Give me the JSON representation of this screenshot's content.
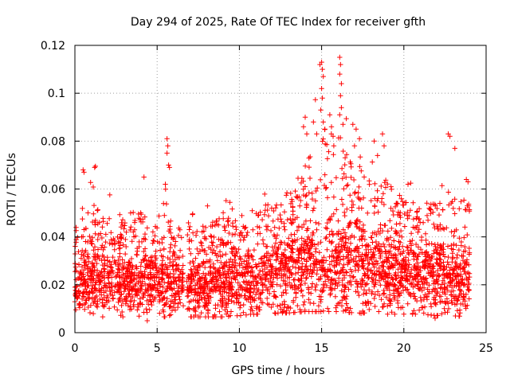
{
  "chart_data": {
    "type": "scatter",
    "title": "Day 294 of 2025, Rate Of TEC Index for receiver gfth",
    "xlabel": "GPS time / hours",
    "ylabel": "ROTI / TECUs",
    "xlim": [
      0,
      25
    ],
    "ylim": [
      0,
      0.12
    ],
    "x_ticks": [
      0,
      5,
      10,
      15,
      20,
      25
    ],
    "x_tick_labels": [
      "0",
      "5",
      "10",
      "15",
      "20",
      "25"
    ],
    "y_ticks": [
      0,
      0.02,
      0.04,
      0.06,
      0.08,
      0.1,
      0.12
    ],
    "y_tick_labels": [
      "0",
      "0.02",
      "0.04",
      "0.06",
      "0.08",
      "0.1",
      "0.12"
    ],
    "grid": true,
    "marker": "+",
    "color": "#ff0000",
    "data_gap_hours": [
      6.6,
      6.8
    ],
    "envelope": [
      {
        "x": 0.0,
        "p10": 0.012,
        "median": 0.022,
        "p90": 0.036,
        "max": 0.047
      },
      {
        "x": 1.0,
        "p10": 0.012,
        "median": 0.022,
        "p90": 0.036,
        "max": 0.069
      },
      {
        "x": 2.0,
        "p10": 0.012,
        "median": 0.022,
        "p90": 0.035,
        "max": 0.06
      },
      {
        "x": 3.0,
        "p10": 0.012,
        "median": 0.022,
        "p90": 0.036,
        "max": 0.062
      },
      {
        "x": 4.0,
        "p10": 0.012,
        "median": 0.022,
        "p90": 0.035,
        "max": 0.064
      },
      {
        "x": 5.0,
        "p10": 0.012,
        "median": 0.022,
        "p90": 0.035,
        "max": 0.055
      },
      {
        "x": 5.5,
        "p10": 0.012,
        "median": 0.022,
        "p90": 0.037,
        "max": 0.081
      },
      {
        "x": 6.5,
        "p10": 0.013,
        "median": 0.021,
        "p90": 0.034,
        "max": 0.046
      },
      {
        "x": 7.0,
        "p10": 0.012,
        "median": 0.02,
        "p90": 0.033,
        "max": 0.052
      },
      {
        "x": 8.0,
        "p10": 0.012,
        "median": 0.02,
        "p90": 0.034,
        "max": 0.054
      },
      {
        "x": 9.0,
        "p10": 0.012,
        "median": 0.021,
        "p90": 0.036,
        "max": 0.058
      },
      {
        "x": 10.0,
        "p10": 0.013,
        "median": 0.022,
        "p90": 0.038,
        "max": 0.06
      },
      {
        "x": 11.0,
        "p10": 0.014,
        "median": 0.024,
        "p90": 0.04,
        "max": 0.062
      },
      {
        "x": 12.0,
        "p10": 0.015,
        "median": 0.025,
        "p90": 0.042,
        "max": 0.064
      },
      {
        "x": 13.0,
        "p10": 0.015,
        "median": 0.026,
        "p90": 0.045,
        "max": 0.066
      },
      {
        "x": 14.0,
        "p10": 0.016,
        "median": 0.028,
        "p90": 0.05,
        "max": 0.09
      },
      {
        "x": 15.0,
        "p10": 0.016,
        "median": 0.029,
        "p90": 0.053,
        "max": 0.112
      },
      {
        "x": 16.0,
        "p10": 0.016,
        "median": 0.03,
        "p90": 0.055,
        "max": 0.115
      },
      {
        "x": 17.0,
        "p10": 0.015,
        "median": 0.029,
        "p90": 0.052,
        "max": 0.087
      },
      {
        "x": 18.0,
        "p10": 0.015,
        "median": 0.028,
        "p90": 0.049,
        "max": 0.08
      },
      {
        "x": 19.0,
        "p10": 0.014,
        "median": 0.027,
        "p90": 0.046,
        "max": 0.083
      },
      {
        "x": 20.0,
        "p10": 0.014,
        "median": 0.026,
        "p90": 0.044,
        "max": 0.065
      },
      {
        "x": 21.0,
        "p10": 0.014,
        "median": 0.025,
        "p90": 0.043,
        "max": 0.062
      },
      {
        "x": 22.0,
        "p10": 0.013,
        "median": 0.024,
        "p90": 0.042,
        "max": 0.064
      },
      {
        "x": 22.8,
        "p10": 0.013,
        "median": 0.024,
        "p90": 0.042,
        "max": 0.083
      },
      {
        "x": 24.0,
        "p10": 0.012,
        "median": 0.023,
        "p90": 0.04,
        "max": 0.064
      }
    ],
    "highlights": [
      {
        "x": 1.2,
        "y": 0.069
      },
      {
        "x": 1.25,
        "y": 0.0695
      },
      {
        "x": 0.5,
        "y": 0.068
      },
      {
        "x": 0.55,
        "y": 0.067
      },
      {
        "x": 5.6,
        "y": 0.081
      },
      {
        "x": 5.65,
        "y": 0.078
      },
      {
        "x": 5.6,
        "y": 0.075
      },
      {
        "x": 5.7,
        "y": 0.07
      },
      {
        "x": 5.75,
        "y": 0.069
      },
      {
        "x": 5.5,
        "y": 0.062
      },
      {
        "x": 4.2,
        "y": 0.065
      },
      {
        "x": 14.0,
        "y": 0.09
      },
      {
        "x": 13.9,
        "y": 0.086
      },
      {
        "x": 14.1,
        "y": 0.083
      },
      {
        "x": 14.5,
        "y": 0.088
      },
      {
        "x": 14.7,
        "y": 0.083
      },
      {
        "x": 14.9,
        "y": 0.112
      },
      {
        "x": 15.0,
        "y": 0.113
      },
      {
        "x": 15.05,
        "y": 0.11
      },
      {
        "x": 15.1,
        "y": 0.107
      },
      {
        "x": 15.0,
        "y": 0.102
      },
      {
        "x": 15.05,
        "y": 0.098
      },
      {
        "x": 14.95,
        "y": 0.093
      },
      {
        "x": 15.1,
        "y": 0.088
      },
      {
        "x": 15.2,
        "y": 0.085
      },
      {
        "x": 15.5,
        "y": 0.091
      },
      {
        "x": 15.6,
        "y": 0.086
      },
      {
        "x": 15.7,
        "y": 0.082
      },
      {
        "x": 16.1,
        "y": 0.115
      },
      {
        "x": 16.15,
        "y": 0.112
      },
      {
        "x": 16.1,
        "y": 0.108
      },
      {
        "x": 16.2,
        "y": 0.104
      },
      {
        "x": 16.15,
        "y": 0.099
      },
      {
        "x": 16.2,
        "y": 0.094
      },
      {
        "x": 16.1,
        "y": 0.091
      },
      {
        "x": 16.3,
        "y": 0.087
      },
      {
        "x": 16.9,
        "y": 0.087
      },
      {
        "x": 17.1,
        "y": 0.085
      },
      {
        "x": 17.3,
        "y": 0.081
      },
      {
        "x": 17.0,
        "y": 0.078
      },
      {
        "x": 18.2,
        "y": 0.08
      },
      {
        "x": 18.4,
        "y": 0.074
      },
      {
        "x": 18.7,
        "y": 0.083
      },
      {
        "x": 18.8,
        "y": 0.078
      },
      {
        "x": 22.7,
        "y": 0.083
      },
      {
        "x": 22.8,
        "y": 0.082
      },
      {
        "x": 23.1,
        "y": 0.077
      },
      {
        "x": 23.8,
        "y": 0.064
      },
      {
        "x": 23.9,
        "y": 0.063
      },
      {
        "x": 4.4,
        "y": 0.005
      },
      {
        "x": 12.2,
        "y": 0.008
      },
      {
        "x": 17.4,
        "y": 0.008
      },
      {
        "x": 17.5,
        "y": 0.009
      },
      {
        "x": 21.9,
        "y": 0.006
      }
    ]
  }
}
